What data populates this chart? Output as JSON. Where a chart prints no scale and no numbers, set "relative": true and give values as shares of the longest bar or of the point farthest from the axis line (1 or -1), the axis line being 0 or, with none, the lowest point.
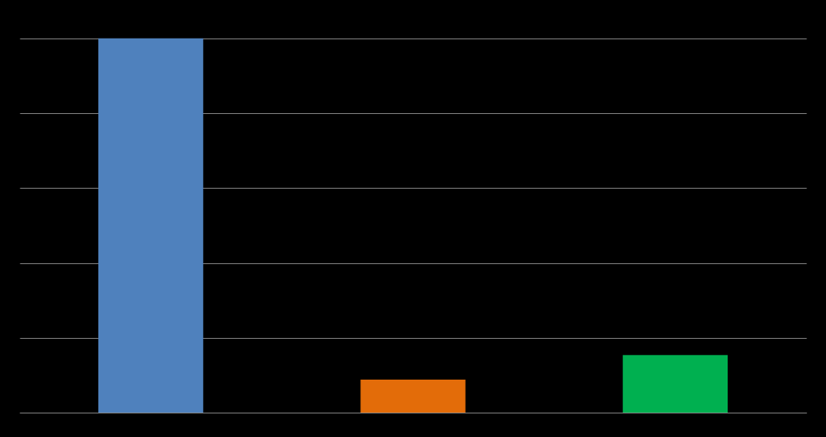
{
  "chart_data": {
    "type": "bar",
    "categories": [
      null,
      null,
      null
    ],
    "values": [
      1,
      0.088,
      0.154
    ],
    "colors": [
      "#4f81bd",
      "#e36c09",
      "#00b050"
    ],
    "relative": true,
    "grid": "y"
  }
}
